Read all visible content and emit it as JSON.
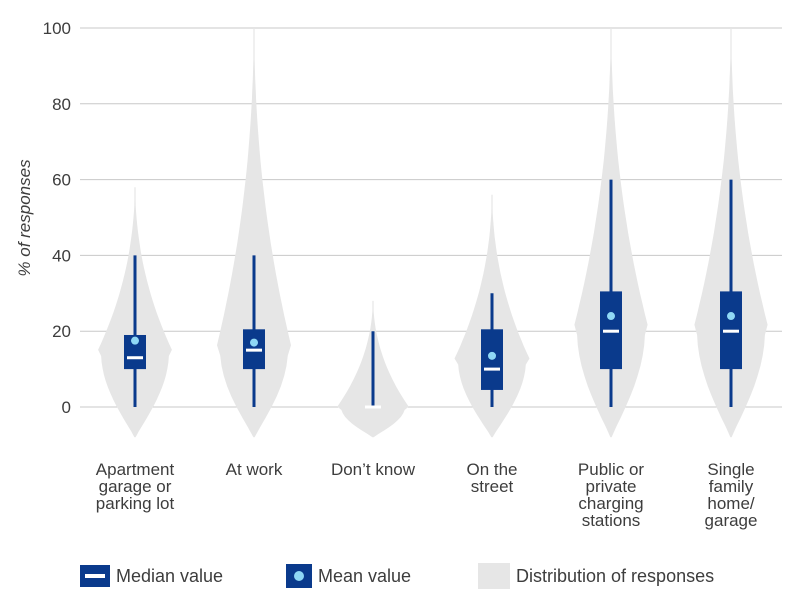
{
  "chart_data": {
    "type": "violin",
    "title": "",
    "xlabel": "",
    "ylabel": "% of responses",
    "ylim": [
      0,
      100
    ],
    "yticks": [
      0,
      20,
      40,
      60,
      80,
      100
    ],
    "grid": true,
    "colors": {
      "box": "#0a3a8c",
      "median": "#ffffff",
      "mean": "#8fd8f5",
      "distribution": "#e6e6e6",
      "grid": "#c8c8c8"
    },
    "categories": [
      {
        "label_lines": [
          "Apartment",
          "garage    or",
          "parking lot"
        ],
        "min": 0,
        "q1": 10,
        "median": 13,
        "q3": 19,
        "max": 40,
        "mean": 17.5,
        "violin_top": 58,
        "violin_bottom": -8
      },
      {
        "label_lines": [
          "At work"
        ],
        "min": 0,
        "q1": 10,
        "median": 15,
        "q3": 20.5,
        "max": 40,
        "mean": 17,
        "violin_top": 100,
        "violin_bottom": -8
      },
      {
        "label_lines": [
          "Don’t know"
        ],
        "min": 0,
        "q1": 0,
        "median": 0,
        "q3": 0,
        "max": 20,
        "mean": null,
        "violin_top": 28,
        "violin_bottom": -8
      },
      {
        "label_lines": [
          "On the",
          "street"
        ],
        "min": 0,
        "q1": 4.5,
        "median": 10,
        "q3": 20.5,
        "max": 30,
        "mean": 13.5,
        "violin_top": 56,
        "violin_bottom": -8
      },
      {
        "label_lines": [
          "Public or",
          "private",
          "charging",
          "stations"
        ],
        "min": 0,
        "q1": 10,
        "median": 20,
        "q3": 30.5,
        "max": 60,
        "mean": 24,
        "violin_top": 100,
        "violin_bottom": -8
      },
      {
        "label_lines": [
          "Single",
          "family",
          "home/",
          "garage"
        ],
        "min": 0,
        "q1": 10,
        "median": 20,
        "q3": 30.5,
        "max": 60,
        "mean": 24,
        "violin_top": 100,
        "violin_bottom": -8
      }
    ],
    "legend": [
      {
        "key": "median",
        "label": "Median value"
      },
      {
        "key": "mean",
        "label": "Mean value"
      },
      {
        "key": "distribution",
        "label": "Distribution of responses"
      }
    ]
  }
}
